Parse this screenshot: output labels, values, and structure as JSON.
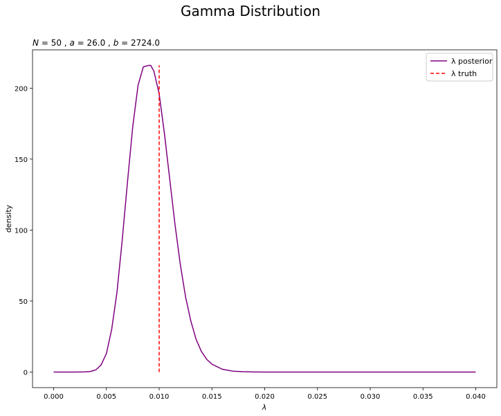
{
  "figure": {
    "suptitle": "Gamma Distribution"
  },
  "chart_data": {
    "type": "line",
    "title": "N = 50, a = 26.0, b = 2724.0",
    "title_parts": {
      "n_label": "N",
      "n_value": "50",
      "a_label": "a",
      "a_value": "26.0",
      "b_label": "b",
      "b_value": "2724.0"
    },
    "xlabel": "λ",
    "ylabel": "density",
    "xlim": [
      -0.002,
      0.042
    ],
    "ylim": [
      -11,
      227
    ],
    "x_ticks": [
      0.0,
      0.005,
      0.01,
      0.015,
      0.02,
      0.025,
      0.03,
      0.035,
      0.04
    ],
    "x_tick_labels": [
      "0.000",
      "0.005",
      "0.010",
      "0.015",
      "0.020",
      "0.025",
      "0.030",
      "0.035",
      "0.040"
    ],
    "y_ticks": [
      0,
      50,
      100,
      150,
      200
    ],
    "y_tick_labels": [
      "0",
      "50",
      "100",
      "150",
      "200"
    ],
    "grid": false,
    "legend_placement": "top-right",
    "series": [
      {
        "name": "λ posterior",
        "style": "solid",
        "color": "#800080",
        "x": [
          0.0,
          0.001,
          0.002,
          0.003,
          0.0035,
          0.004,
          0.0045,
          0.005,
          0.0055,
          0.006,
          0.0065,
          0.007,
          0.0075,
          0.008,
          0.0085,
          0.009,
          0.0092,
          0.0095,
          0.01,
          0.0105,
          0.011,
          0.0115,
          0.012,
          0.0125,
          0.013,
          0.0135,
          0.014,
          0.0145,
          0.015,
          0.016,
          0.017,
          0.018,
          0.019,
          0.02,
          0.022,
          0.025,
          0.03,
          0.035,
          0.04
        ],
        "y": [
          0,
          0,
          0,
          0.1,
          0.4,
          1.5,
          5,
          13,
          30,
          56,
          93,
          134,
          173,
          202,
          215,
          216,
          216,
          212,
          196,
          168,
          136,
          104,
          76,
          53,
          36,
          23,
          14.5,
          9,
          5.5,
          1.9,
          0.6,
          0.2,
          0.05,
          0,
          0,
          0,
          0,
          0,
          0
        ]
      },
      {
        "name": "λ truth",
        "style": "dashed",
        "color": "#ff0000",
        "x": [
          0.01,
          0.01
        ],
        "y": [
          0,
          216
        ]
      }
    ]
  }
}
